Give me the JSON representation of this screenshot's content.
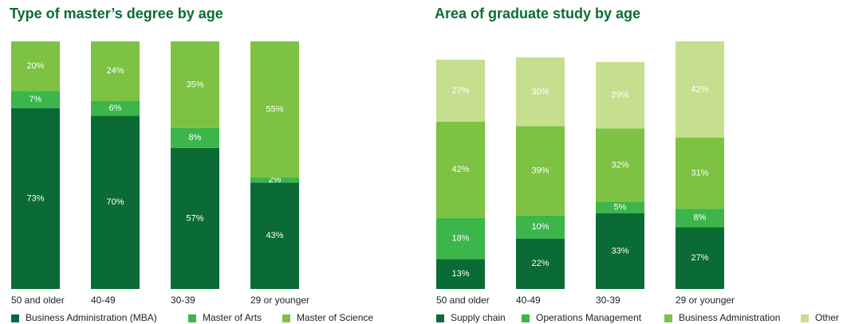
{
  "chart_data": [
    {
      "type": "stacked_bar",
      "title": "Type of master’s degree by age",
      "categories": [
        "50 and older",
        "40-49",
        "30-39",
        "29 or younger"
      ],
      "ylim": [
        0,
        100
      ],
      "series": [
        {
          "name": "Business Administration (MBA)",
          "color": "#0b6b35",
          "values": [
            73,
            70,
            57,
            43
          ],
          "value_labels": [
            "73%",
            "70%",
            "57%",
            "43%"
          ]
        },
        {
          "name": "Master of Arts",
          "color": "#3cb54a",
          "values": [
            7,
            6,
            8,
            2
          ],
          "value_labels": [
            "7%",
            "6%",
            "8%",
            "2%"
          ]
        },
        {
          "name": "Master of Science",
          "color": "#7dc242",
          "values": [
            20,
            24,
            35,
            55
          ],
          "value_labels": [
            "20%",
            "24%",
            "35%",
            "55%"
          ]
        }
      ]
    },
    {
      "type": "stacked_bar",
      "title": "Area of graduate study by age",
      "categories": [
        "50 and older",
        "40-49",
        "30-39",
        "29 or younger"
      ],
      "ylim": [
        0,
        108
      ],
      "series": [
        {
          "name": "Supply chain",
          "color": "#0b6b35",
          "values": [
            13,
            22,
            33,
            27
          ],
          "value_labels": [
            "13%",
            "22%",
            "33%",
            "27%"
          ]
        },
        {
          "name": "Operations Management",
          "color": "#3cb54a",
          "values": [
            18,
            10,
            5,
            8
          ],
          "value_labels": [
            "18%",
            "10%",
            "5%",
            "8%"
          ]
        },
        {
          "name": "Business Administration",
          "color": "#7dc242",
          "values": [
            42,
            39,
            32,
            31
          ],
          "value_labels": [
            "42%",
            "39%",
            "32%",
            "31%"
          ]
        },
        {
          "name": "Other",
          "color": "#c5df8f",
          "values": [
            27,
            30,
            29,
            42
          ],
          "value_labels": [
            "27%",
            "30%",
            "29%",
            "42%"
          ]
        }
      ]
    }
  ]
}
